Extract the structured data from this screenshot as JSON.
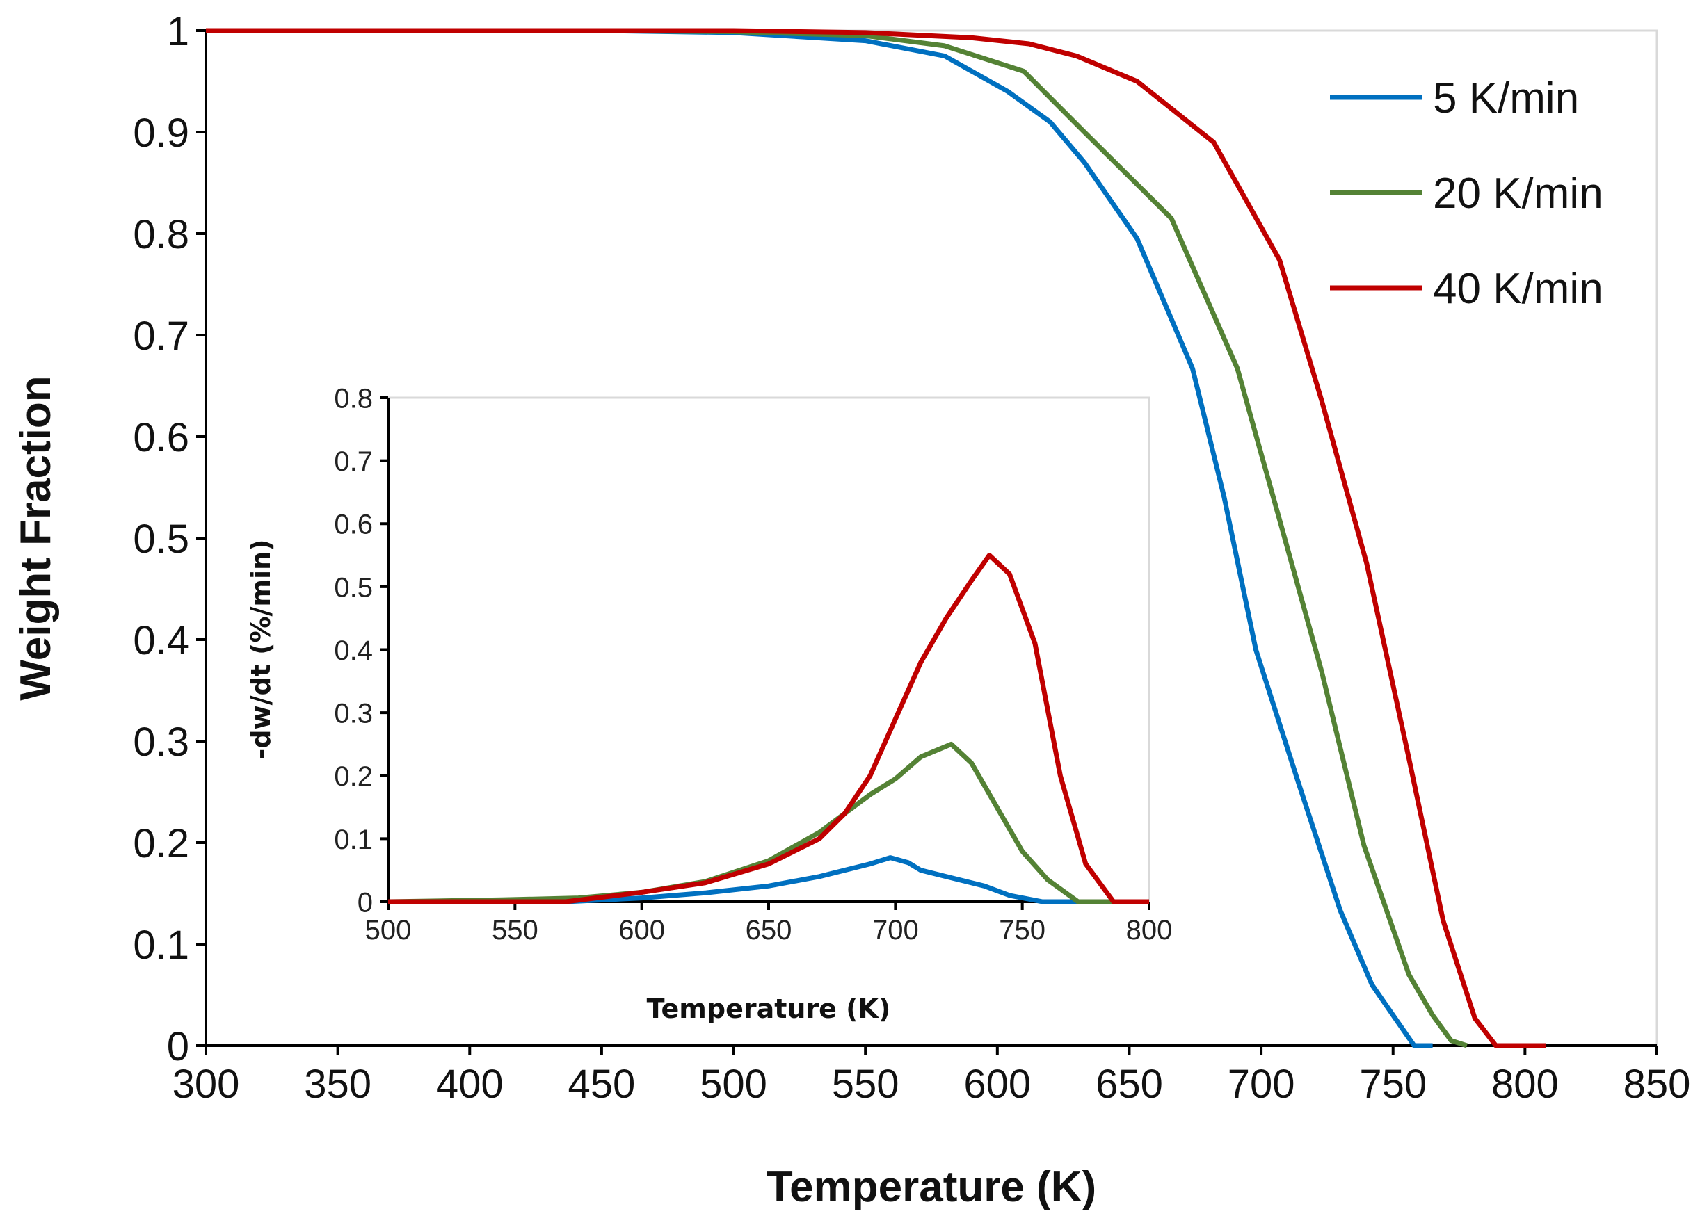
{
  "chart_data": [
    {
      "type": "line",
      "xlabel": "Temperature (K)",
      "ylabel": "Weight Fraction",
      "xlim": [
        300,
        850
      ],
      "ylim": [
        0,
        1
      ],
      "xticks": [
        "300",
        "350",
        "400",
        "450",
        "500",
        "550",
        "600",
        "650",
        "700",
        "750",
        "800",
        "850"
      ],
      "yticks": [
        "0",
        "0.1",
        "0.2",
        "0.3",
        "0.4",
        "0.5",
        "0.6",
        "0.7",
        "0.8",
        "0.9",
        "1"
      ],
      "grid": false,
      "legend_position": "top-right",
      "series": [
        {
          "name": "5 K/min",
          "color": "#0070C0",
          "x": [
            300,
            450,
            500,
            550,
            580,
            604,
            620,
            633,
            653,
            674,
            686,
            698,
            714,
            730,
            742,
            750,
            758,
            765
          ],
          "y": [
            1,
            1,
            0.998,
            0.99,
            0.975,
            0.94,
            0.91,
            0.87,
            0.795,
            0.667,
            0.54,
            0.39,
            0.26,
            0.133,
            0.06,
            0.03,
            0.0,
            0.0
          ]
        },
        {
          "name": "20 K/min",
          "color": "#548235",
          "x": [
            300,
            450,
            500,
            550,
            580,
            610,
            633,
            666,
            691,
            707,
            723,
            739,
            756,
            765,
            772,
            778
          ],
          "y": [
            1,
            1,
            0.999,
            0.995,
            0.985,
            0.96,
            0.9,
            0.815,
            0.667,
            0.518,
            0.368,
            0.197,
            0.07,
            0.03,
            0.005,
            0.0
          ]
        },
        {
          "name": "40 K/min",
          "color": "#C00000",
          "x": [
            300,
            450,
            500,
            550,
            590,
            612,
            630,
            653,
            682,
            707,
            723,
            740,
            756,
            769,
            781,
            789,
            808
          ],
          "y": [
            1,
            1,
            1,
            0.998,
            0.993,
            0.987,
            0.975,
            0.95,
            0.89,
            0.774,
            0.635,
            0.475,
            0.283,
            0.123,
            0.027,
            0.0,
            0.0
          ]
        }
      ]
    },
    {
      "type": "line",
      "xlabel": "Temperature (K)",
      "ylabel": "-dw/dt (%/min)",
      "xlim": [
        500,
        800
      ],
      "ylim": [
        0,
        0.8
      ],
      "xticks": [
        "500",
        "550",
        "600",
        "650",
        "700",
        "750",
        "800"
      ],
      "yticks": [
        "0",
        "0.1",
        "0.2",
        "0.3",
        "0.4",
        "0.5",
        "0.6",
        "0.7",
        "0.8"
      ],
      "grid": false,
      "series": [
        {
          "name": "5 K/min",
          "color": "#0070C0",
          "x": [
            500,
            570,
            600,
            625,
            650,
            670,
            680,
            690,
            698,
            705,
            710,
            720,
            735,
            745,
            758,
            800
          ],
          "y": [
            0,
            0,
            0.006,
            0.014,
            0.025,
            0.04,
            0.05,
            0.06,
            0.07,
            0.062,
            0.05,
            0.04,
            0.025,
            0.01,
            0,
            0
          ]
        },
        {
          "name": "20 K/min",
          "color": "#548235",
          "x": [
            500,
            545,
            575,
            600,
            625,
            650,
            670,
            680,
            690,
            700,
            710,
            722,
            730,
            740,
            750,
            760,
            772,
            800
          ],
          "y": [
            0,
            0.003,
            0.006,
            0.015,
            0.032,
            0.065,
            0.11,
            0.14,
            0.17,
            0.195,
            0.23,
            0.25,
            0.22,
            0.15,
            0.08,
            0.035,
            0,
            0
          ]
        },
        {
          "name": "40 K/min",
          "color": "#C00000",
          "x": [
            500,
            570,
            580,
            600,
            625,
            650,
            670,
            680,
            690,
            700,
            710,
            720,
            730,
            737,
            745,
            755,
            765,
            775,
            786,
            800
          ],
          "y": [
            0,
            0,
            0.005,
            0.015,
            0.03,
            0.06,
            0.1,
            0.14,
            0.2,
            0.29,
            0.38,
            0.45,
            0.51,
            0.55,
            0.52,
            0.41,
            0.2,
            0.06,
            0,
            0
          ]
        }
      ]
    }
  ]
}
